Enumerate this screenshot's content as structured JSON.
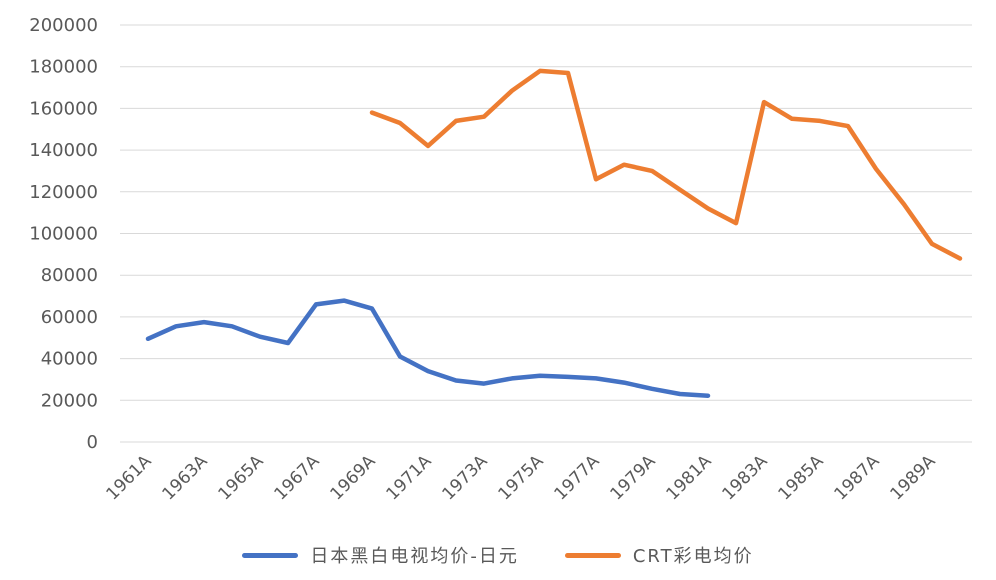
{
  "chart_data": {
    "type": "line",
    "title": "",
    "xlabel": "",
    "ylabel": "",
    "ylim": [
      0,
      200000
    ],
    "yticks": [
      "0",
      "20000",
      "40000",
      "60000",
      "80000",
      "100000",
      "120000",
      "140000",
      "160000",
      "180000",
      "200000"
    ],
    "x": [
      "1961A",
      "1962A",
      "1963A",
      "1964A",
      "1965A",
      "1966A",
      "1967A",
      "1968A",
      "1969A",
      "1970A",
      "1971A",
      "1972A",
      "1973A",
      "1974A",
      "1975A",
      "1976A",
      "1977A",
      "1978A",
      "1979A",
      "1980A",
      "1981A",
      "1982A",
      "1983A",
      "1984A",
      "1985A",
      "1986A",
      "1987A",
      "1988A",
      "1989A",
      "1990A"
    ],
    "xticks_shown": [
      "1961A",
      "1963A",
      "1965A",
      "1967A",
      "1969A",
      "1971A",
      "1973A",
      "1975A",
      "1977A",
      "1979A",
      "1981A",
      "1983A",
      "1985A",
      "1987A",
      "1989A"
    ],
    "grid": true,
    "legend_position": "bottom",
    "series": [
      {
        "name": "日本黑白电视均价-日元",
        "color": "#4472C4",
        "values": [
          49500,
          55500,
          57500,
          55500,
          50500,
          47500,
          66000,
          67800,
          64000,
          41000,
          34000,
          29500,
          28000,
          30500,
          31800,
          31200,
          30500,
          28500,
          25500,
          23000,
          22200,
          null,
          null,
          null,
          null,
          null,
          null,
          null,
          null,
          null
        ]
      },
      {
        "name": "CRT彩电均价",
        "color": "#ED7D31",
        "values": [
          null,
          null,
          null,
          null,
          null,
          null,
          null,
          null,
          158000,
          153000,
          142000,
          154000,
          156000,
          168500,
          178000,
          177000,
          126000,
          133000,
          130000,
          121000,
          112000,
          105000,
          163000,
          155000,
          154000,
          151500,
          131000,
          114000,
          95000,
          88000
        ]
      }
    ]
  }
}
